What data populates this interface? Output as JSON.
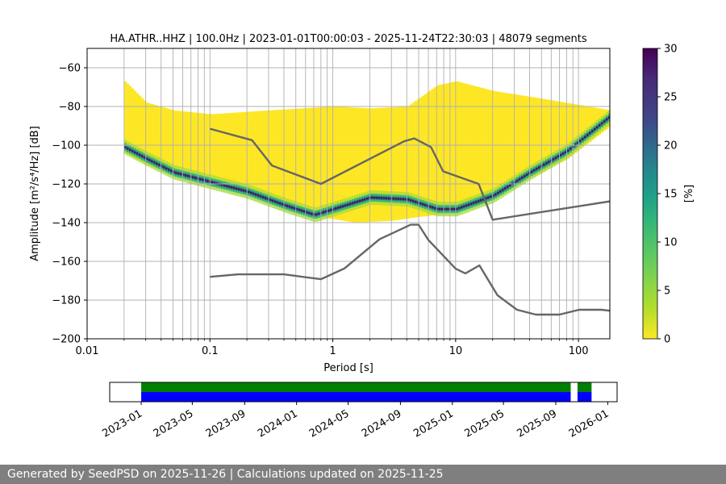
{
  "chart_data": [
    {
      "type": "heatmap",
      "title": "HA.ATHR..HHZ | 100.0Hz | 2023-01-01T00:00:03 - 2025-11-24T22:30:03 | 48079 segments",
      "xlabel": "Period [s]",
      "ylabel": "Amplitude [m²/s⁴/Hz] [dB]",
      "xscale": "log",
      "xlim": [
        0.01,
        180
      ],
      "ylim": [
        -200,
        -50
      ],
      "x_ticks": [
        0.01,
        0.1,
        1,
        10,
        100
      ],
      "x_tick_labels": [
        "0.01",
        "0.1",
        "1",
        "10",
        "100"
      ],
      "y_ticks": [
        -200,
        -180,
        -160,
        -140,
        -120,
        -100,
        -80,
        -60
      ],
      "y_tick_labels": [
        "−200",
        "−180",
        "−160",
        "−140",
        "−120",
        "−100",
        "−80",
        "−60"
      ],
      "grid": true,
      "colorbar": {
        "label": "[%]",
        "range": [
          0,
          30
        ],
        "ticks": [
          0,
          5,
          10,
          15,
          20,
          25,
          30
        ],
        "tick_labels": [
          "0",
          "5",
          "10",
          "15",
          "20",
          "25",
          "30"
        ],
        "colormap": "viridis_r"
      },
      "series": [
        {
          "role": "NHNM",
          "color": "#666666",
          "points": [
            [
              0.1,
              -91.5
            ],
            [
              0.22,
              -97.4
            ],
            [
              0.32,
              -110.5
            ],
            [
              0.8,
              -120
            ],
            [
              3.8,
              -98
            ],
            [
              4.6,
              -96.5
            ],
            [
              6.3,
              -101
            ],
            [
              7.9,
              -113.5
            ],
            [
              15.4,
              -120
            ],
            [
              20,
              -138.5
            ],
            [
              180,
              -129
            ]
          ]
        },
        {
          "role": "NLNM",
          "color": "#666666",
          "points": [
            [
              0.1,
              -168
            ],
            [
              0.17,
              -166.7
            ],
            [
              0.4,
              -166.7
            ],
            [
              0.8,
              -169.2
            ],
            [
              1.24,
              -163.7
            ],
            [
              2.4,
              -148.6
            ],
            [
              4.3,
              -141.1
            ],
            [
              5.0,
              -141.1
            ],
            [
              6.0,
              -149
            ],
            [
              10,
              -163.8
            ],
            [
              12,
              -166.2
            ],
            [
              15.6,
              -162.1
            ],
            [
              21.9,
              -177.5
            ],
            [
              31.6,
              -185
            ],
            [
              45,
              -187.5
            ],
            [
              70,
              -187.5
            ],
            [
              101,
              -185
            ],
            [
              154,
              -185
            ],
            [
              180,
              -185.5
            ]
          ]
        }
      ],
      "density": {
        "period_range": [
          0.02,
          180
        ],
        "lower_edge_db": [
          [
            0.02,
            -104
          ],
          [
            0.03,
            -110
          ],
          [
            0.05,
            -116
          ],
          [
            0.1,
            -120
          ],
          [
            0.3,
            -129
          ],
          [
            0.6,
            -136
          ],
          [
            1.5,
            -140
          ],
          [
            3,
            -139
          ],
          [
            5,
            -137
          ],
          [
            10,
            -135
          ],
          [
            20,
            -126
          ],
          [
            40,
            -117
          ],
          [
            80,
            -107
          ],
          [
            180,
            -90
          ]
        ],
        "upper_edge_db": [
          [
            0.02,
            -67
          ],
          [
            0.03,
            -78
          ],
          [
            0.05,
            -82
          ],
          [
            0.1,
            -84
          ],
          [
            0.3,
            -82
          ],
          [
            1,
            -80
          ],
          [
            2,
            -81
          ],
          [
            4,
            -80
          ],
          [
            7,
            -69
          ],
          [
            10,
            -67
          ],
          [
            20,
            -72
          ],
          [
            50,
            -76
          ],
          [
            180,
            -82
          ]
        ],
        "mode_db": [
          [
            0.02,
            -101
          ],
          [
            0.03,
            -107
          ],
          [
            0.05,
            -114
          ],
          [
            0.1,
            -119
          ],
          [
            0.2,
            -124
          ],
          [
            0.4,
            -131
          ],
          [
            0.7,
            -136
          ],
          [
            1,
            -133
          ],
          [
            2,
            -127
          ],
          [
            4,
            -128
          ],
          [
            7,
            -133
          ],
          [
            10,
            -133
          ],
          [
            20,
            -126
          ],
          [
            40,
            -114
          ],
          [
            80,
            -103
          ],
          [
            180,
            -85
          ]
        ]
      }
    },
    {
      "type": "timeline",
      "x_ticks": [
        "2023-01",
        "2023-05",
        "2023-09",
        "2024-01",
        "2024-05",
        "2024-09",
        "2025-01",
        "2025-05",
        "2025-09",
        "2026-01"
      ],
      "xlim": [
        "2022-10-19",
        "2026-01-23"
      ],
      "tracks": [
        {
          "color": "#008000",
          "segments": [
            [
              "2023-01-01",
              "2025-10-06"
            ],
            [
              "2025-10-22",
              "2025-11-24"
            ]
          ]
        },
        {
          "color": "#0000ff",
          "segments": [
            [
              "2023-01-01",
              "2025-10-06"
            ],
            [
              "2025-10-22",
              "2025-11-24"
            ]
          ]
        }
      ]
    }
  ],
  "footer": {
    "text": "Generated by SeedPSD on 2025-11-26 | Calculations updated on 2025-11-25"
  }
}
